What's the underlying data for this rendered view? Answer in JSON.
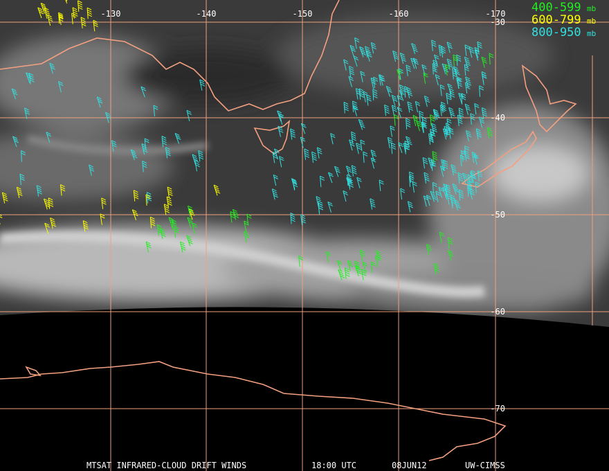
{
  "map": {
    "longitude_labels": [
      -130,
      -140,
      -150,
      -160,
      -170
    ],
    "latitude_labels": [
      -30,
      -40,
      -50,
      -60,
      -70
    ],
    "legend": [
      {
        "range": "400-599",
        "unit": "mb"
      },
      {
        "range": "600-799",
        "unit": "mb"
      },
      {
        "range": "800-950",
        "unit": "mb"
      }
    ],
    "footer": {
      "product": "MTSAT INFRARED-CLOUD DRIFT WINDS",
      "time": "18:00 UTC",
      "date": "08JUN12",
      "source": "UW-CIMSS"
    }
  }
}
